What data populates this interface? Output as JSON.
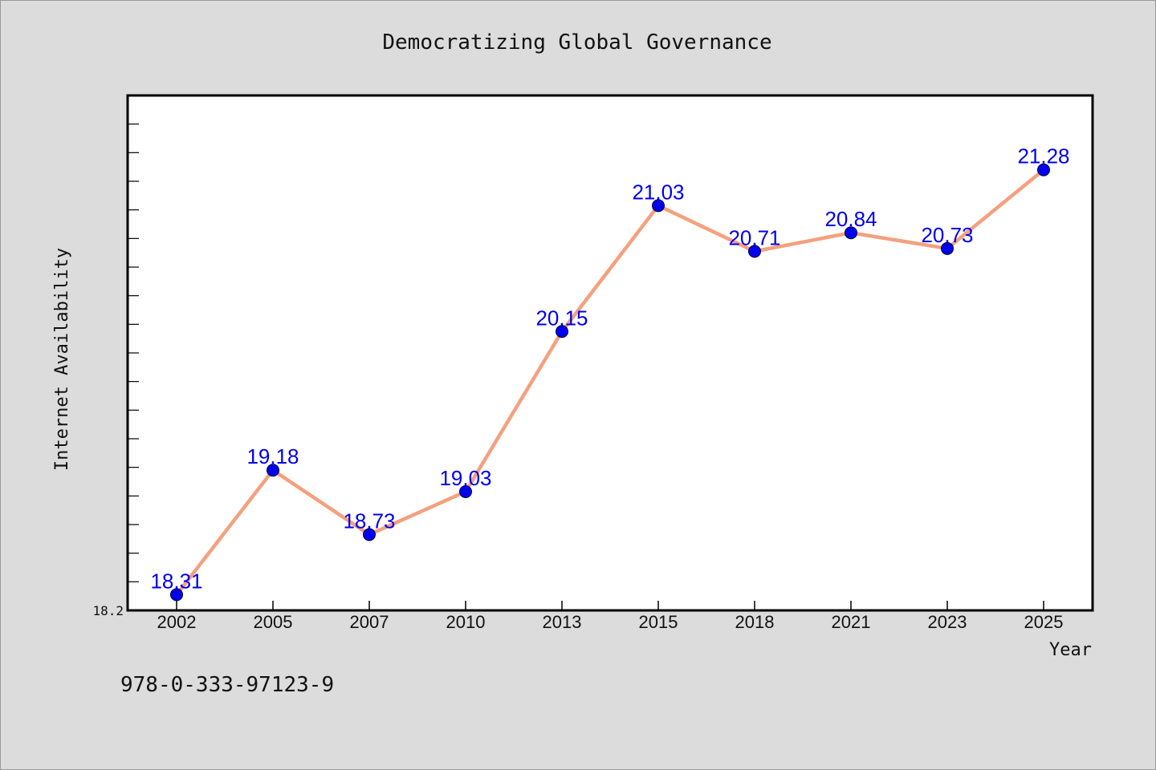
{
  "chart_data": {
    "type": "line",
    "title": "Democratizing Global Governance",
    "xlabel": "Year",
    "ylabel": "Internet Availability",
    "categories": [
      "2002",
      "2005",
      "2007",
      "2010",
      "2013",
      "2015",
      "2018",
      "2021",
      "2023",
      "2025"
    ],
    "series": [
      {
        "values": [
          18.31,
          19.18,
          18.73,
          19.03,
          20.15,
          21.03,
          20.71,
          20.84,
          20.73,
          21.28
        ],
        "labels": [
          "18.31",
          "19.18",
          "18.73",
          "19.03",
          "20.15",
          "21.03",
          "20.71",
          "20.84",
          "20.73",
          "21.28"
        ]
      }
    ],
    "ylim": [
      18.2,
      21.8
    ],
    "yticks_labeled": [
      "18.2"
    ],
    "grid": false,
    "line_color": "#f5a07e",
    "marker_color": "#0000ee",
    "label_color": "#0000ee"
  },
  "footer": {
    "text": "978-0-333-97123-9"
  }
}
